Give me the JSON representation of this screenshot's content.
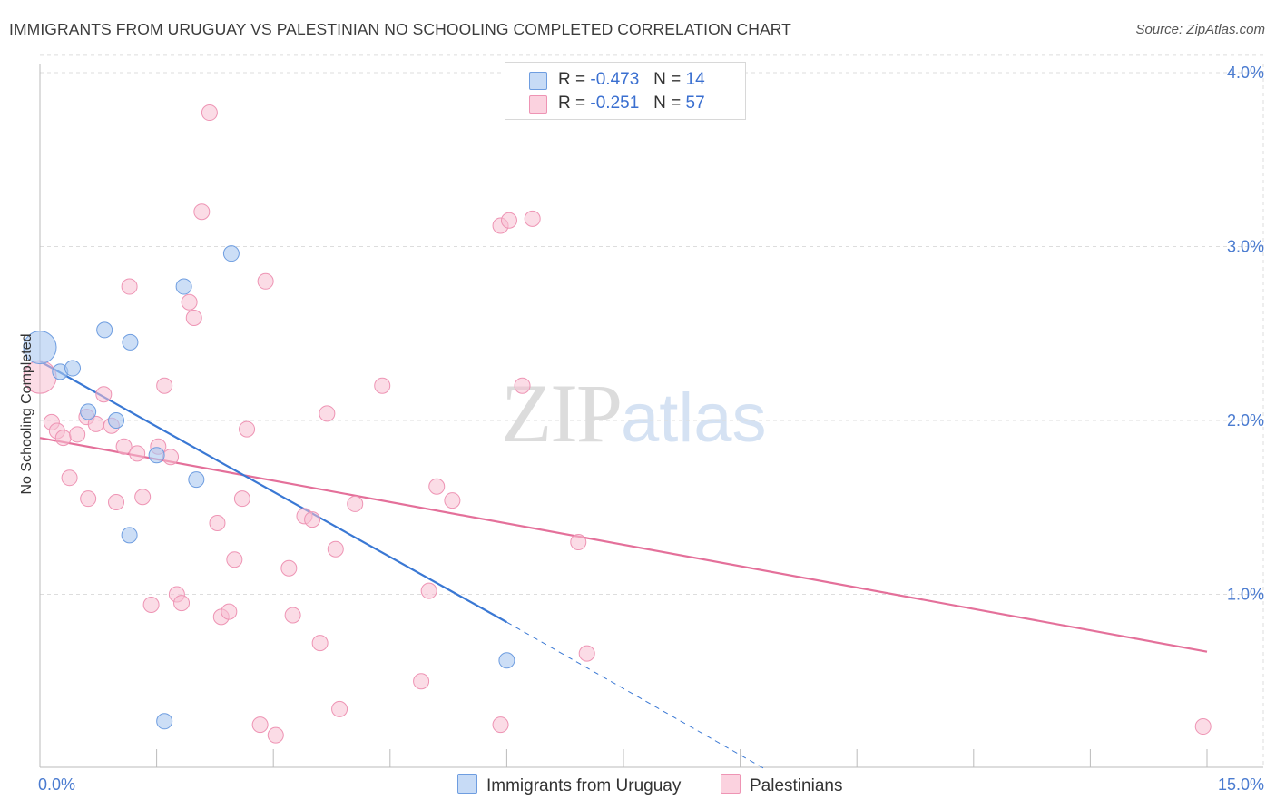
{
  "title": "IMMIGRANTS FROM URUGUAY VS PALESTINIAN NO SCHOOLING COMPLETED CORRELATION CHART",
  "source": "Source: ZipAtlas.com",
  "watermark": {
    "zip": "ZIP",
    "atlas": "atlas"
  },
  "legend": {
    "rows": [
      {
        "r_label": "R =",
        "r_value": "-0.473",
        "n_label": "N =",
        "n_value": "14"
      },
      {
        "r_label": "R =",
        "r_value": "-0.251",
        "n_label": "N =",
        "n_value": "57"
      }
    ]
  },
  "colors": {
    "uruguay_fill": "#aac8f0",
    "uruguay_stroke": "#6e9de0",
    "uruguay_line": "#3a78d4",
    "pal_fill": "#f8bfd2",
    "pal_stroke": "#ee94b4",
    "pal_line": "#e4709a",
    "grid": "#dddddd",
    "axis_label": "#4a7bd0"
  },
  "chart_data": {
    "type": "scatter",
    "title": "IMMIGRANTS FROM URUGUAY VS PALESTINIAN NO SCHOOLING COMPLETED CORRELATION CHART",
    "xlabel": "",
    "ylabel": "No Schooling Completed",
    "xlim": [
      0,
      15
    ],
    "ylim": [
      0,
      4.15
    ],
    "x_tick_labels": [
      "0.0%",
      "15.0%"
    ],
    "y_ticks": [
      1.0,
      2.0,
      3.0,
      4.0
    ],
    "y_tick_labels": [
      "1.0%",
      "2.0%",
      "3.0%",
      "4.0%"
    ],
    "grid": true,
    "legend_position": "top-center",
    "series": [
      {
        "name": "Immigrants from Uruguay",
        "R": -0.473,
        "N": 14,
        "points": [
          {
            "x": 0.0,
            "y": 2.42,
            "big": true
          },
          {
            "x": 0.26,
            "y": 2.28
          },
          {
            "x": 0.42,
            "y": 2.3
          },
          {
            "x": 0.62,
            "y": 2.05
          },
          {
            "x": 0.83,
            "y": 2.52
          },
          {
            "x": 0.98,
            "y": 2.0
          },
          {
            "x": 1.16,
            "y": 2.45
          },
          {
            "x": 1.5,
            "y": 1.8
          },
          {
            "x": 1.85,
            "y": 2.77
          },
          {
            "x": 2.01,
            "y": 1.66
          },
          {
            "x": 2.46,
            "y": 2.96
          },
          {
            "x": 1.15,
            "y": 1.34
          },
          {
            "x": 1.6,
            "y": 0.27
          },
          {
            "x": 6.0,
            "y": 0.62
          }
        ],
        "trend": {
          "x0": 0.0,
          "y0": 2.34,
          "x1": 6.0,
          "y1": 0.84,
          "dash_x1": 9.3,
          "dash_y1": 0.0
        }
      },
      {
        "name": "Palestinians",
        "R": -0.251,
        "N": 57,
        "points": [
          {
            "x": 0.0,
            "y": 2.25,
            "big": true
          },
          {
            "x": 0.15,
            "y": 1.99
          },
          {
            "x": 0.22,
            "y": 1.94
          },
          {
            "x": 0.3,
            "y": 1.9
          },
          {
            "x": 0.38,
            "y": 1.67
          },
          {
            "x": 0.48,
            "y": 1.92
          },
          {
            "x": 0.62,
            "y": 1.55
          },
          {
            "x": 0.6,
            "y": 2.02
          },
          {
            "x": 0.72,
            "y": 1.98
          },
          {
            "x": 0.82,
            "y": 2.15
          },
          {
            "x": 0.92,
            "y": 1.97
          },
          {
            "x": 0.98,
            "y": 1.53
          },
          {
            "x": 1.08,
            "y": 1.85
          },
          {
            "x": 1.15,
            "y": 2.77
          },
          {
            "x": 1.25,
            "y": 1.81
          },
          {
            "x": 1.32,
            "y": 1.56
          },
          {
            "x": 1.43,
            "y": 0.94
          },
          {
            "x": 1.52,
            "y": 1.85
          },
          {
            "x": 1.6,
            "y": 2.2
          },
          {
            "x": 1.68,
            "y": 1.79
          },
          {
            "x": 1.76,
            "y": 1.0
          },
          {
            "x": 1.82,
            "y": 0.95
          },
          {
            "x": 1.92,
            "y": 2.68
          },
          {
            "x": 1.98,
            "y": 2.59
          },
          {
            "x": 2.08,
            "y": 3.2
          },
          {
            "x": 2.18,
            "y": 3.77
          },
          {
            "x": 2.28,
            "y": 1.41
          },
          {
            "x": 2.33,
            "y": 0.87
          },
          {
            "x": 2.43,
            "y": 0.9
          },
          {
            "x": 2.5,
            "y": 1.2
          },
          {
            "x": 2.6,
            "y": 1.55
          },
          {
            "x": 2.66,
            "y": 1.95
          },
          {
            "x": 2.83,
            "y": 0.25
          },
          {
            "x": 2.9,
            "y": 2.8
          },
          {
            "x": 3.03,
            "y": 0.19
          },
          {
            "x": 3.2,
            "y": 1.15
          },
          {
            "x": 3.25,
            "y": 0.88
          },
          {
            "x": 3.4,
            "y": 1.45
          },
          {
            "x": 3.5,
            "y": 1.43
          },
          {
            "x": 3.6,
            "y": 0.72
          },
          {
            "x": 3.69,
            "y": 2.04
          },
          {
            "x": 3.8,
            "y": 1.26
          },
          {
            "x": 3.85,
            "y": 0.34
          },
          {
            "x": 4.05,
            "y": 1.52
          },
          {
            "x": 4.4,
            "y": 2.2
          },
          {
            "x": 4.9,
            "y": 0.5
          },
          {
            "x": 5.0,
            "y": 1.02
          },
          {
            "x": 5.1,
            "y": 1.62
          },
          {
            "x": 5.3,
            "y": 1.54
          },
          {
            "x": 5.92,
            "y": 3.12
          },
          {
            "x": 6.03,
            "y": 3.15
          },
          {
            "x": 6.2,
            "y": 2.2
          },
          {
            "x": 6.33,
            "y": 3.16
          },
          {
            "x": 6.92,
            "y": 1.3
          },
          {
            "x": 7.03,
            "y": 0.66
          },
          {
            "x": 5.92,
            "y": 0.25
          },
          {
            "x": 14.95,
            "y": 0.24
          }
        ],
        "trend": {
          "x0": 0.0,
          "y0": 1.9,
          "x1": 15.0,
          "y1": 0.67
        }
      }
    ]
  },
  "bottom_legend": {
    "uruguay_label": "Immigrants from Uruguay",
    "pal_label": "Palestinians"
  }
}
